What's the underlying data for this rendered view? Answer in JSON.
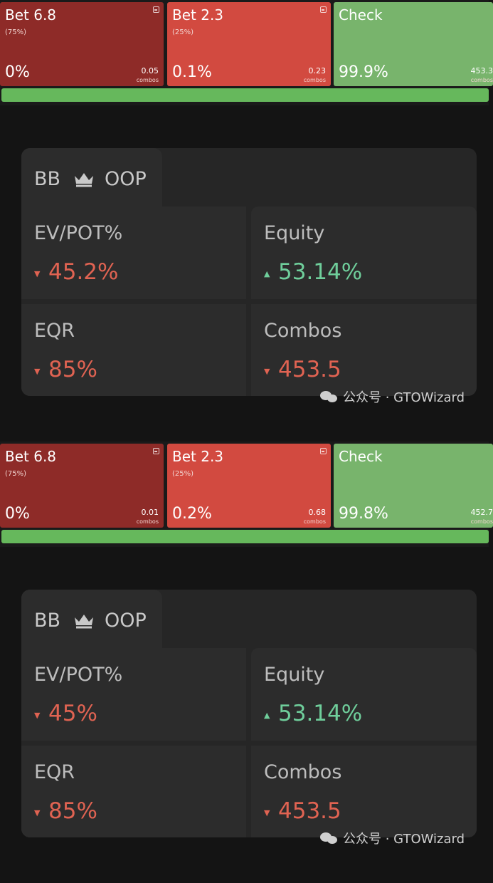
{
  "panels": [
    {
      "actions": [
        {
          "name": "Bet 6.8",
          "size": "(75%)",
          "pct": "0%",
          "combos": "0.05",
          "combo_label": "combos"
        },
        {
          "name": "Bet 2.3",
          "size": "(25%)",
          "pct": "0.1%",
          "combos": "0.23",
          "combo_label": "combos"
        },
        {
          "name": "Check",
          "size": "",
          "pct": "99.9%",
          "combos": "453.3",
          "combo_label": "combos"
        }
      ],
      "check_frequency_pct": 99.9,
      "player": {
        "name": "BB",
        "position": "OOP",
        "icon": "crown-icon"
      },
      "stats": {
        "ev_label": "EV/POT%",
        "ev_value": "45.2%",
        "ev_trend": "down",
        "equity_label": "Equity",
        "equity_value": "53.14%",
        "equity_trend": "up",
        "eqr_label": "EQR",
        "eqr_value": "85%",
        "eqr_trend": "down",
        "combos_label": "Combos",
        "combos_value": "453.5",
        "combos_trend": "down"
      },
      "watermark": "公众号 · GTOWizard"
    },
    {
      "actions": [
        {
          "name": "Bet 6.8",
          "size": "(75%)",
          "pct": "0%",
          "combos": "0.01",
          "combo_label": "combos"
        },
        {
          "name": "Bet 2.3",
          "size": "(25%)",
          "pct": "0.2%",
          "combos": "0.68",
          "combo_label": "combos"
        },
        {
          "name": "Check",
          "size": "",
          "pct": "99.8%",
          "combos": "452.7",
          "combo_label": "combos"
        }
      ],
      "check_frequency_pct": 99.8,
      "player": {
        "name": "BB",
        "position": "OOP",
        "icon": "crown-icon"
      },
      "stats": {
        "ev_label": "EV/POT%",
        "ev_value": "45%",
        "ev_trend": "down",
        "equity_label": "Equity",
        "equity_value": "53.14%",
        "equity_trend": "up",
        "eqr_label": "EQR",
        "eqr_value": "85%",
        "eqr_trend": "down",
        "combos_label": "Combos",
        "combos_value": "453.5",
        "combos_trend": "down"
      },
      "watermark": "公众号 · GTOWizard"
    }
  ],
  "colors": {
    "bet_large": "#8e2b28",
    "bet_small": "#d24a40",
    "check": "#78b46c",
    "negative": "#e06352",
    "positive": "#6fce9b"
  }
}
